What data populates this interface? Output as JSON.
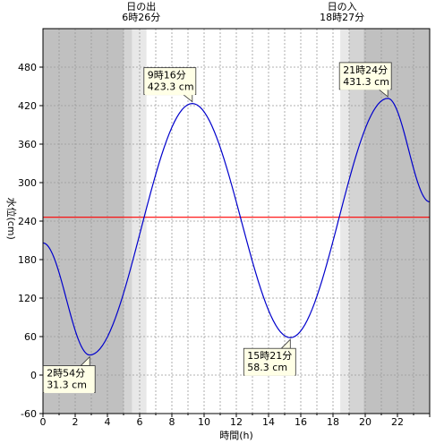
{
  "chart_data": {
    "type": "line",
    "title": "",
    "xlabel": "時間(h)",
    "ylabel": "水位(cm)",
    "xlim": [
      0,
      24
    ],
    "ylim": [
      -60,
      540
    ],
    "x_ticks": [
      "0",
      "2",
      "4",
      "6",
      "8",
      "10",
      "12",
      "14",
      "16",
      "18",
      "20",
      "22"
    ],
    "y_ticks": [
      "-60",
      "0",
      "60",
      "120",
      "180",
      "240",
      "300",
      "360",
      "420",
      "480"
    ],
    "grid": true,
    "reference_line": {
      "value": 246,
      "color": "#ff0000"
    },
    "series": [
      {
        "color": "#0000cc",
        "points": [
          [
            0,
            206
          ],
          [
            2.9,
            31.3
          ],
          [
            9.267,
            423.3
          ],
          [
            15.35,
            58.3
          ],
          [
            21.4,
            431.3
          ],
          [
            24,
            270
          ]
        ]
      }
    ],
    "extrema": [
      {
        "time": "2時54分",
        "level": "31.3 cm",
        "x": 2.9,
        "y": 31.3
      },
      {
        "time": "9時16分",
        "level": "423.3 cm",
        "x": 9.267,
        "y": 423.3
      },
      {
        "time": "15時21分",
        "level": "58.3 cm",
        "x": 15.35,
        "y": 58.3
      },
      {
        "time": "21時24分",
        "level": "431.3 cm",
        "x": 21.4,
        "y": 431.3
      }
    ],
    "sunrise": {
      "label": "日の出",
      "time": "6時26分",
      "hour": 6.433
    },
    "sunset": {
      "label": "日の入",
      "time": "18時27分",
      "hour": 18.45
    },
    "colors": {
      "night": "#c0c0c0",
      "twilight_dark": "#d4d4d4",
      "twilight_light": "#e8e8e8",
      "grid": "#999999"
    }
  }
}
